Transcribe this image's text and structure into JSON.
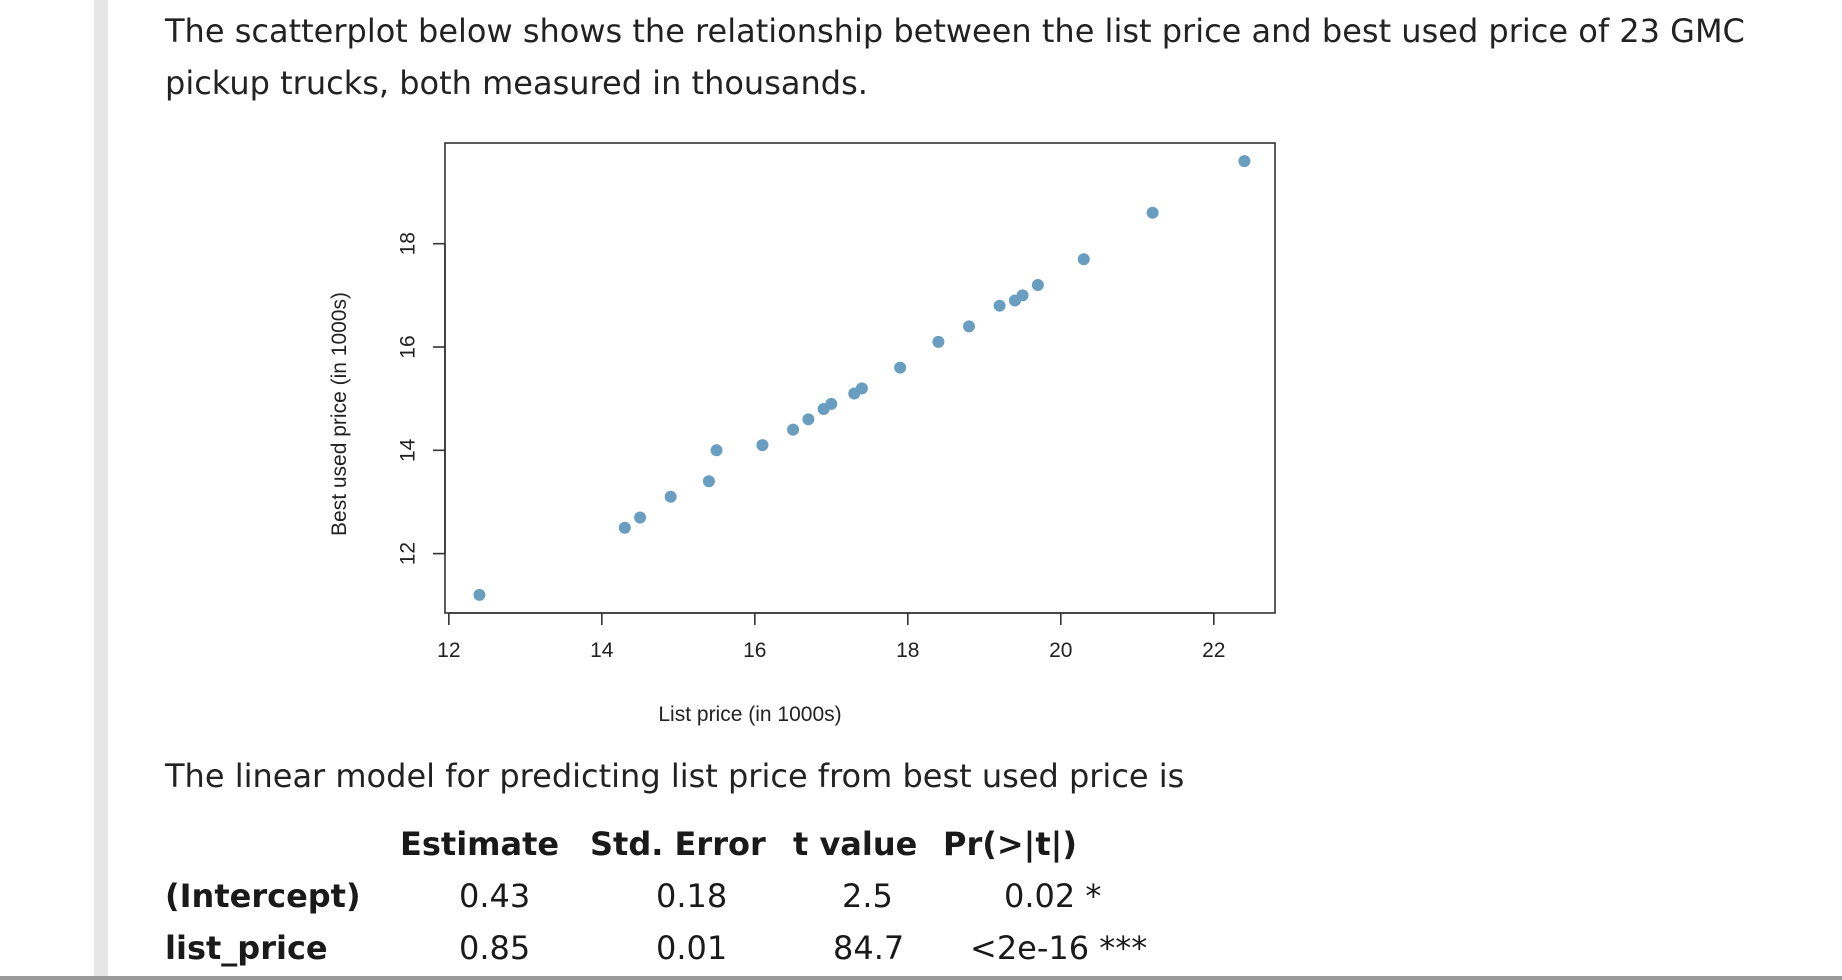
{
  "intro_text": "The scatterplot below shows the relationship between the list price and best used price of 23 GMC pickup trucks, both measured in thousands.",
  "model_intro": "The linear model for predicting list price from best used price is",
  "colors": {
    "point": "#6a9ec0",
    "axis": "#333333",
    "rail": "#e6e6e6"
  },
  "chart_data": {
    "type": "scatter",
    "xlabel": "List price (in 1000s)",
    "ylabel": "Best used price (in 1000s)",
    "xlim": [
      11.95,
      22.8
    ],
    "ylim": [
      10.85,
      19.95
    ],
    "xticks": [
      12,
      14,
      16,
      18,
      20,
      22
    ],
    "yticks": [
      12,
      14,
      16,
      18
    ],
    "grid": false,
    "points": [
      [
        12.4,
        11.2
      ],
      [
        14.3,
        12.5
      ],
      [
        14.5,
        12.7
      ],
      [
        14.9,
        13.1
      ],
      [
        15.4,
        13.4
      ],
      [
        15.5,
        14.0
      ],
      [
        16.1,
        14.1
      ],
      [
        16.5,
        14.4
      ],
      [
        16.7,
        14.6
      ],
      [
        16.9,
        14.8
      ],
      [
        17.0,
        14.9
      ],
      [
        17.3,
        15.1
      ],
      [
        17.4,
        15.2
      ],
      [
        17.9,
        15.6
      ],
      [
        18.4,
        16.1
      ],
      [
        18.8,
        16.4
      ],
      [
        19.2,
        16.8
      ],
      [
        19.4,
        16.9
      ],
      [
        19.5,
        17.0
      ],
      [
        19.7,
        17.2
      ],
      [
        20.3,
        17.7
      ],
      [
        21.2,
        18.6
      ],
      [
        22.4,
        19.6
      ]
    ]
  },
  "table": {
    "headers": [
      "Estimate",
      "Std. Error",
      "t value",
      "Pr(>|t|)"
    ],
    "rows": [
      {
        "label": "(Intercept)",
        "cells": [
          "0.43",
          "0.18",
          "2.5",
          "0.02 *"
        ]
      },
      {
        "label": "list_price",
        "cells": [
          "0.85",
          "0.01",
          "84.7",
          "<2e-16 ***"
        ]
      }
    ]
  }
}
